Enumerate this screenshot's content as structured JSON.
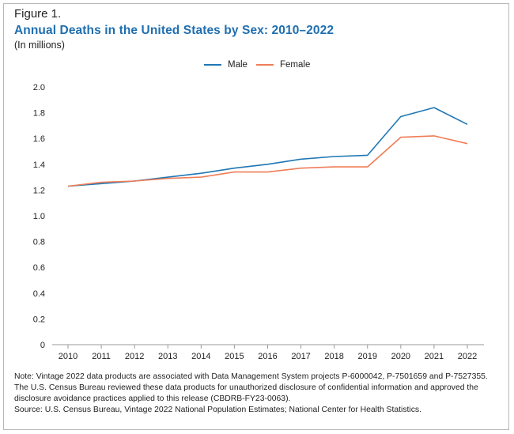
{
  "figure_label": "Figure 1.",
  "title": "Annual Deaths in the United States by Sex: 2010–2022",
  "subtitle": "(In millions)",
  "note": "Note: Vintage 2022 data products are associated with Data Management System projects P-6000042, P-7501659 and P-7527355. The U.S. Census Bureau reviewed these data products for unauthorized disclosure of confidential information and approved the disclosure avoidance practices applied to this release (CBDRB-FY23-0063).",
  "source": "Source: U.S. Census Bureau, Vintage 2022 National Population Estimates; National Center for Health Statistics.",
  "colors": {
    "male": "#1f77b4",
    "female": "#ef7d57",
    "axis": "#9a9a9a",
    "title": "#1f6fb0"
  },
  "chart_data": {
    "type": "line",
    "title": "Annual Deaths in the United States by Sex: 2010–2022",
    "subtitle": "(In millions)",
    "xlabel": "",
    "ylabel": "",
    "ylim": [
      0,
      2.0
    ],
    "yticks": [
      0,
      0.2,
      0.4,
      0.6,
      0.8,
      1.0,
      1.2,
      1.4,
      1.6,
      1.8,
      2.0
    ],
    "ytick_labels": [
      "0",
      "0.2",
      "0.4",
      "0.6",
      "0.8",
      "1.0",
      "1.2",
      "1.4",
      "1.6",
      "1.8",
      "2.0"
    ],
    "categories": [
      "2010",
      "2011",
      "2012",
      "2013",
      "2014",
      "2015",
      "2016",
      "2017",
      "2018",
      "2019",
      "2020",
      "2021",
      "2022"
    ],
    "grid": false,
    "legend_position": "top-center",
    "series": [
      {
        "name": "Male",
        "color": "#1f77b4",
        "values": [
          1.23,
          1.25,
          1.27,
          1.3,
          1.33,
          1.37,
          1.4,
          1.44,
          1.46,
          1.47,
          1.77,
          1.84,
          1.71
        ]
      },
      {
        "name": "Female",
        "color": "#ef7d57",
        "values": [
          1.23,
          1.26,
          1.27,
          1.29,
          1.3,
          1.34,
          1.34,
          1.37,
          1.38,
          1.38,
          1.61,
          1.62,
          1.56
        ]
      }
    ]
  }
}
